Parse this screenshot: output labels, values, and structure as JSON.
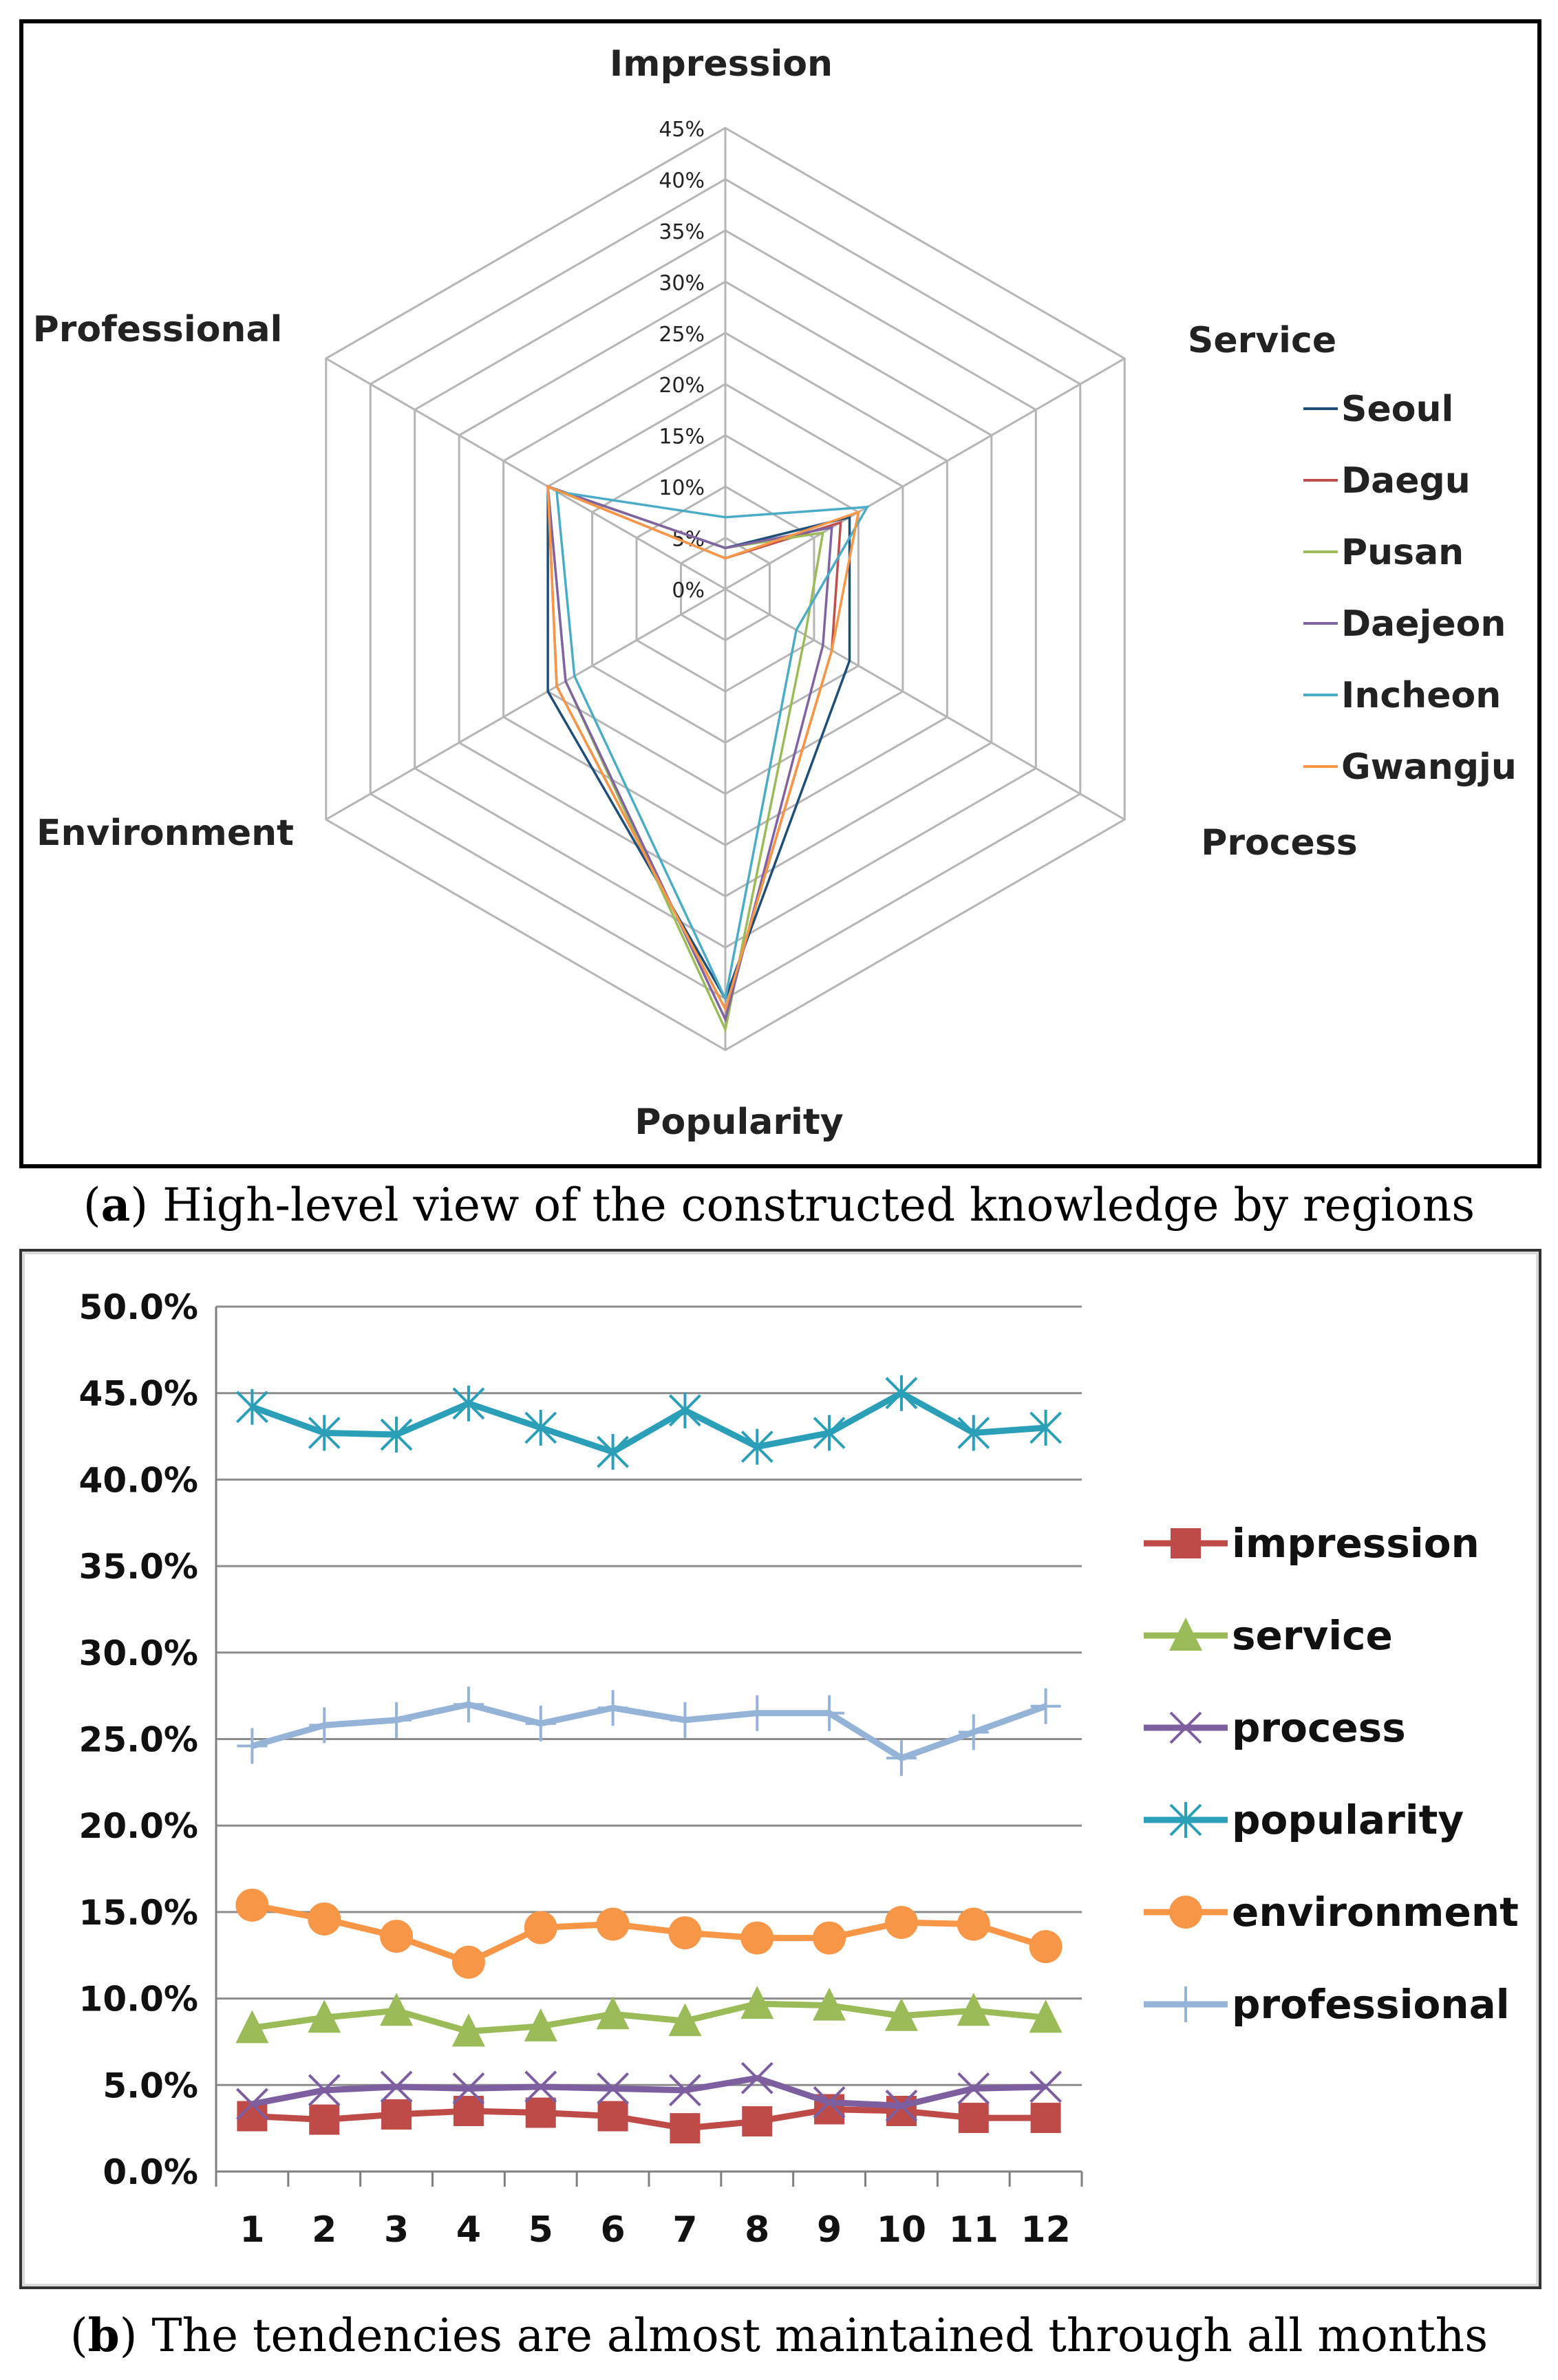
{
  "captions": {
    "a_letter": "a",
    "a_text": "High-level view of the constructed knowledge by regions",
    "b_letter": "b",
    "b_text": "The tendencies are almost maintained through all months"
  },
  "chart_data": [
    {
      "type": "radar",
      "axes": [
        "Impression",
        "Service",
        "Process",
        "Popularity",
        "Environment",
        "Professional"
      ],
      "ticks": [
        "0%",
        "5%",
        "10%",
        "15%",
        "20%",
        "25%",
        "30%",
        "35%",
        "40%",
        "45%"
      ],
      "range": [
        0,
        45
      ],
      "legend_position": "right",
      "series": [
        {
          "name": "Seoul",
          "color": "#1f4e79",
          "values": [
            4,
            14,
            14,
            40,
            20,
            20
          ]
        },
        {
          "name": "Daegu",
          "color": "#c0504d",
          "values": [
            3,
            13,
            12,
            41,
            19,
            20
          ]
        },
        {
          "name": "Pusan",
          "color": "#9bbb59",
          "values": [
            4,
            11,
            9,
            43,
            18,
            20
          ]
        },
        {
          "name": "Daejeon",
          "color": "#8064a2",
          "values": [
            4,
            12,
            11,
            42,
            18,
            20
          ]
        },
        {
          "name": "Incheon",
          "color": "#4bacc6",
          "values": [
            7,
            16,
            8,
            40,
            17,
            19
          ]
        },
        {
          "name": "Gwangju",
          "color": "#f79646",
          "values": [
            3,
            15,
            12,
            41,
            19,
            20
          ]
        }
      ]
    },
    {
      "type": "line",
      "categories": [
        "1",
        "2",
        "3",
        "4",
        "5",
        "6",
        "7",
        "8",
        "9",
        "10",
        "11",
        "12"
      ],
      "yticks": [
        "0.0%",
        "5.0%",
        "10.0%",
        "15.0%",
        "20.0%",
        "25.0%",
        "30.0%",
        "35.0%",
        "40.0%",
        "45.0%",
        "50.0%"
      ],
      "ylim": [
        0,
        50
      ],
      "legend_position": "right",
      "series": [
        {
          "name": "impression",
          "color": "#be4b48",
          "marker": "square",
          "values": [
            3.2,
            3.0,
            3.3,
            3.5,
            3.4,
            3.2,
            2.5,
            2.9,
            3.6,
            3.5,
            3.1,
            3.1
          ]
        },
        {
          "name": "service",
          "color": "#9bbb59",
          "marker": "triangle",
          "values": [
            8.3,
            8.9,
            9.3,
            8.1,
            8.4,
            9.1,
            8.7,
            9.7,
            9.6,
            9.0,
            9.3,
            8.9
          ]
        },
        {
          "name": "process",
          "color": "#7d5fa0",
          "marker": "x",
          "values": [
            3.9,
            4.7,
            4.9,
            4.8,
            4.9,
            4.8,
            4.7,
            5.4,
            4.0,
            3.8,
            4.8,
            4.9
          ]
        },
        {
          "name": "popularity",
          "color": "#2a9fb7",
          "marker": "star",
          "values": [
            44.2,
            42.7,
            42.6,
            44.4,
            43.0,
            41.6,
            44.0,
            41.9,
            42.7,
            45.0,
            42.7,
            43.0
          ]
        },
        {
          "name": "environment",
          "color": "#f79646",
          "marker": "circle",
          "values": [
            15.4,
            14.6,
            13.6,
            12.1,
            14.1,
            14.3,
            13.8,
            13.5,
            13.5,
            14.4,
            14.3,
            13.0
          ]
        },
        {
          "name": "professional",
          "color": "#95b3d7",
          "marker": "plus",
          "values": [
            24.6,
            25.8,
            26.1,
            27.0,
            25.9,
            26.8,
            26.1,
            26.5,
            26.5,
            23.9,
            25.4,
            26.9
          ]
        }
      ]
    }
  ]
}
